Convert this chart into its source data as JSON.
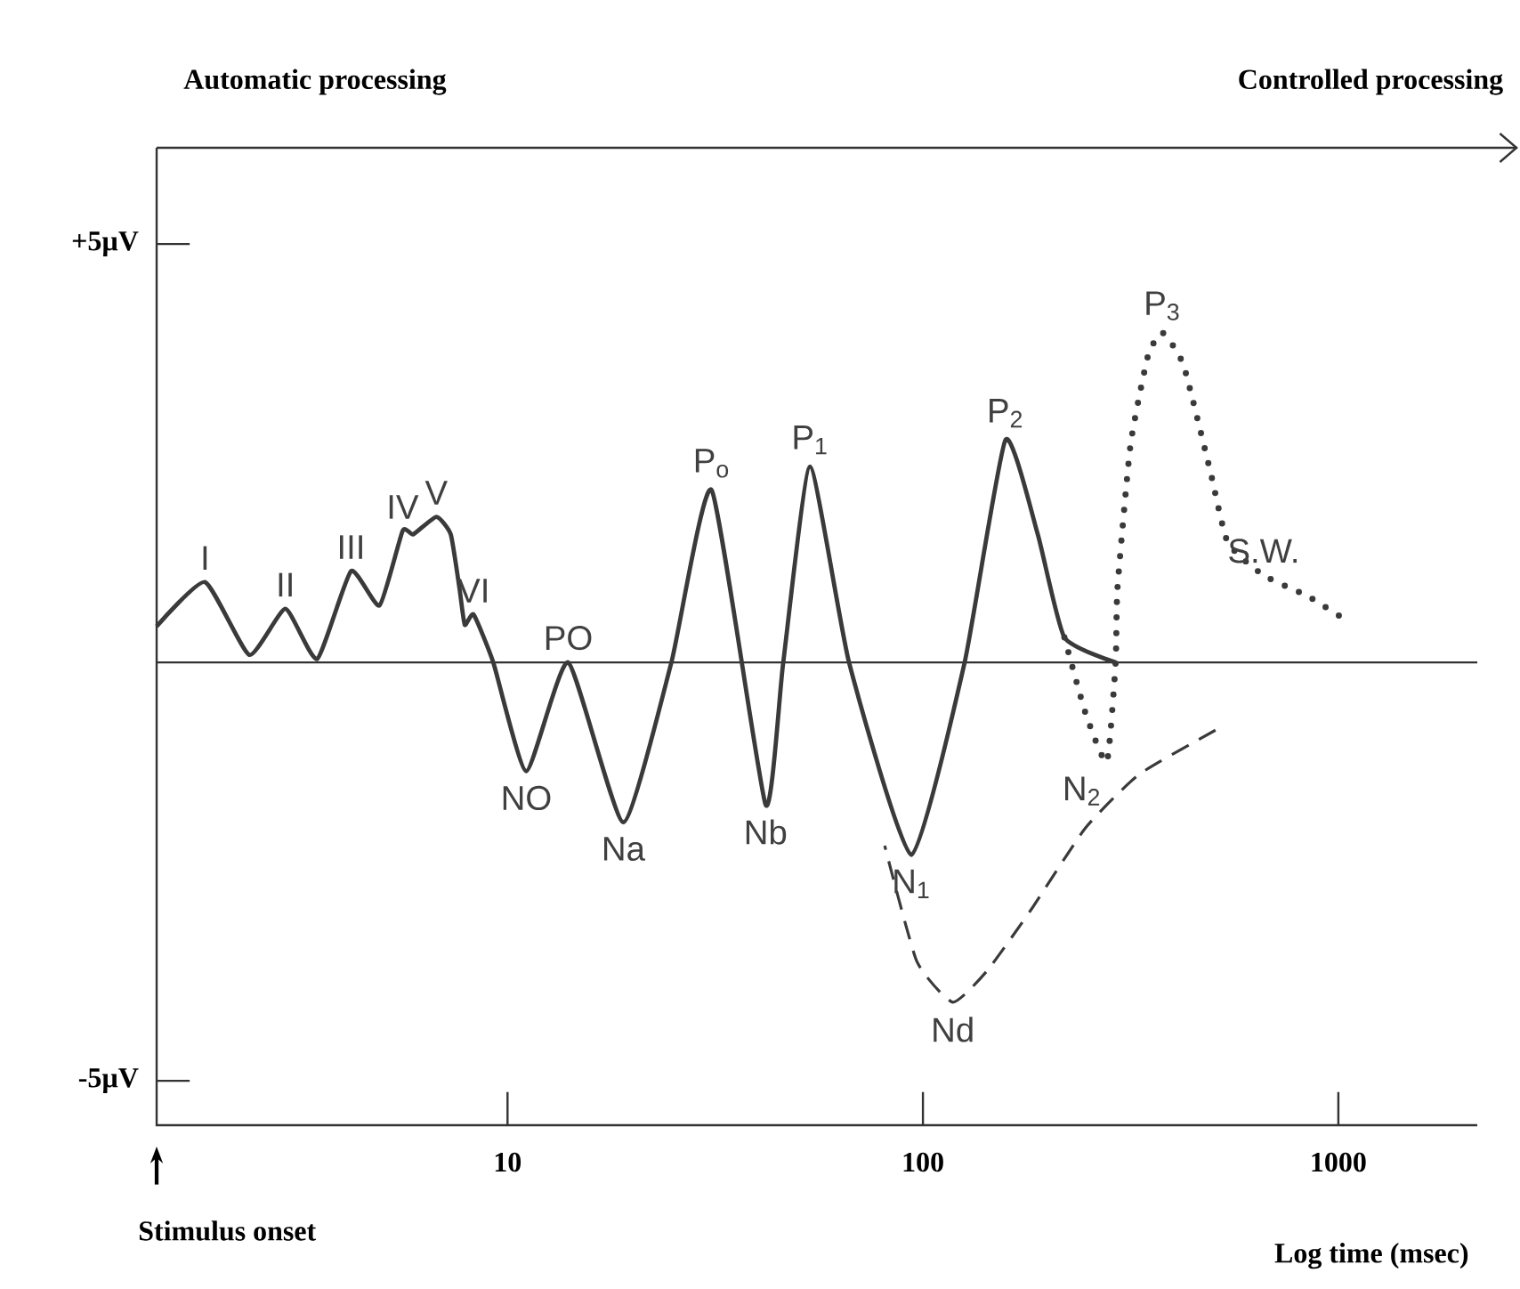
{
  "chart_data": {
    "type": "line",
    "xlabel": "Log time (msec)",
    "log": "x",
    "xlim": [
      1.43,
      2160
    ],
    "ylim": [
      -5.53,
      6.15
    ],
    "xticks": [
      10,
      100,
      1000
    ],
    "yticks": [
      {
        "value": 5,
        "label": "+5µV"
      },
      {
        "value": -5,
        "label": "-5µV"
      }
    ],
    "ref_lines": [
      {
        "axis": "y",
        "value": 0,
        "color": "#333333"
      }
    ],
    "series": [
      {
        "color": "#3a3a3a",
        "line_style": "solid",
        "x": [
          1.43,
          1.87,
          2.39,
          2.92,
          3.48,
          4.2,
          4.92,
          5.59,
          5.93,
          6.74,
          7.3,
          7.66,
          7.89,
          8.29,
          9.24,
          11.1,
          14.0,
          19.0,
          24.8,
          31.0,
          41.8,
          46.1,
          53.5,
          66.4,
          93.8,
          126,
          158,
          189,
          219,
          291
        ],
        "values": [
          0.43,
          0.96,
          0.09,
          0.64,
          0.04,
          1.09,
          0.68,
          1.57,
          1.53,
          1.74,
          1.53,
          0.89,
          0.45,
          0.57,
          0,
          -1.3,
          0,
          -1.91,
          0,
          2.06,
          -1.7,
          0,
          2.34,
          0,
          -2.3,
          0,
          2.66,
          1.53,
          0.3,
          0
        ]
      },
      {
        "color": "#3a3a3a",
        "line_style": "dotted",
        "x": [
          219,
          246,
          277,
          291,
          294,
          316,
          348,
          377,
          424,
          492,
          542,
          661,
          845,
          1040
        ],
        "values": [
          0.3,
          -0.6,
          -1.19,
          0,
          0.89,
          2.6,
          3.66,
          3.94,
          3.55,
          2.28,
          1.43,
          1.04,
          0.79,
          0.51
        ]
      },
      {
        "color": "#3a3a3a",
        "line_style": "dashed",
        "x": [
          80.9,
          96.6,
          118,
          143,
          183,
          246,
          331,
          506
        ],
        "values": [
          -2.19,
          -3.57,
          -4.06,
          -3.68,
          -2.94,
          -1.98,
          -1.34,
          -0.81
        ]
      }
    ],
    "annotations": [
      "Automatic processing",
      "Controlled processing",
      "Stimulus onset",
      {
        "text": "I",
        "x": 1.87,
        "y": 0.96
      },
      {
        "text": "II",
        "x": 2.92,
        "y": 0.64
      },
      {
        "text": "III",
        "x": 4.2,
        "y": 1.09
      },
      {
        "text": "IV",
        "x": 5.59,
        "y": 1.57
      },
      {
        "text": "V",
        "x": 6.74,
        "y": 1.74
      },
      {
        "text": "VI",
        "x": 8.29,
        "y": 0.57
      },
      {
        "text": "NO",
        "x": 11.1,
        "y": -1.3
      },
      {
        "text": "PO",
        "x": 14.0,
        "y": 0
      },
      {
        "text": "Na",
        "x": 19.0,
        "y": -1.91
      },
      {
        "text": "P$_{o}$",
        "x": 31.0,
        "y": 2.06
      },
      {
        "text": "Nb",
        "x": 41.8,
        "y": -1.7
      },
      {
        "text": "P$_{1}$",
        "x": 53.5,
        "y": 2.34
      },
      {
        "text": "N$_{1}$",
        "x": 93.8,
        "y": -2.3
      },
      {
        "text": "P$_{2}$",
        "x": 158,
        "y": 2.66
      },
      {
        "text": "N$_{2}$",
        "x": 277,
        "y": -1.19
      },
      {
        "text": "P$_{3}$",
        "x": 377,
        "y": 3.94
      },
      {
        "text": "Nd",
        "x": 118,
        "y": -4.06
      },
      {
        "text": "S.W.",
        "x": 661,
        "y": 1.04
      }
    ]
  }
}
